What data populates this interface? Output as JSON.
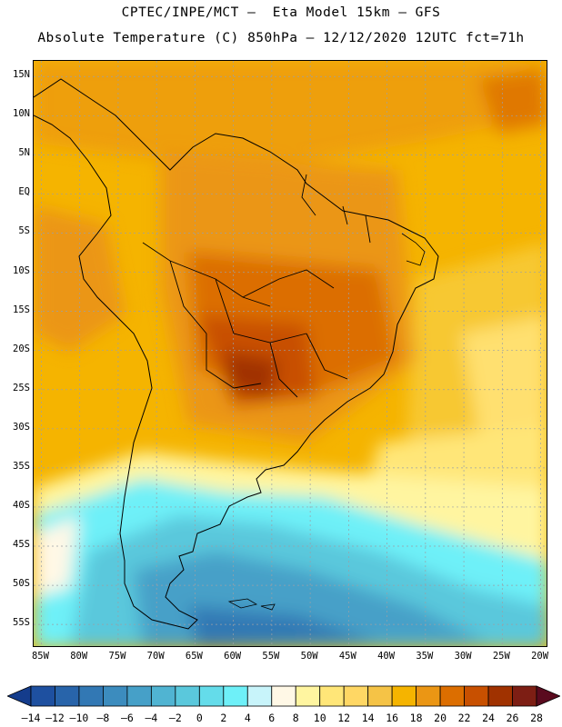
{
  "header": {
    "line1": "CPTEC/INPE/MCT –  Eta Model 15km – GFS",
    "line2": "Absolute Temperature (C) 850hPa – 12/12/2020 12UTC fct=71h"
  },
  "map": {
    "lon_range": [
      -86,
      -19
    ],
    "lat_range": [
      17,
      -58
    ],
    "lat_ticks": [
      "15N",
      "10N",
      "5N",
      "EQ",
      "5S",
      "10S",
      "15S",
      "20S",
      "25S",
      "30S",
      "35S",
      "40S",
      "45S",
      "50S",
      "55S"
    ],
    "lat_values": [
      15,
      10,
      5,
      0,
      -5,
      -10,
      -15,
      -20,
      -25,
      -30,
      -35,
      -40,
      -45,
      -50,
      -55
    ],
    "lon_ticks": [
      "85W",
      "80W",
      "75W",
      "70W",
      "65W",
      "60W",
      "55W",
      "50W",
      "45W",
      "40W",
      "35W",
      "30W",
      "25W",
      "20W"
    ],
    "lon_values": [
      -85,
      -80,
      -75,
      -70,
      -65,
      -60,
      -55,
      -50,
      -45,
      -40,
      -35,
      -30,
      -25,
      -20
    ],
    "grid": true,
    "coastline_color": "#000000"
  },
  "colorbar": {
    "labels": [
      "-14",
      "-12",
      "-10",
      "-8",
      "-6",
      "-4",
      "-2",
      "0",
      "2",
      "4",
      "6",
      "8",
      "10",
      "12",
      "14",
      "16",
      "18",
      "20",
      "22",
      "24",
      "26",
      "28"
    ],
    "colors": [
      "#143c8c",
      "#1e50a0",
      "#2864aa",
      "#3278b4",
      "#3c8cbe",
      "#46a0c8",
      "#50b4d2",
      "#5ac8dc",
      "#64dcea",
      "#6ef0f8",
      "#c8f4fa",
      "#fff8e6",
      "#fff5a0",
      "#ffe678",
      "#ffd764",
      "#f5c346",
      "#f5b400",
      "#eb9614",
      "#dc6e00",
      "#c85000",
      "#a03200",
      "#7d1e14",
      "#5a0a1e"
    ]
  }
}
